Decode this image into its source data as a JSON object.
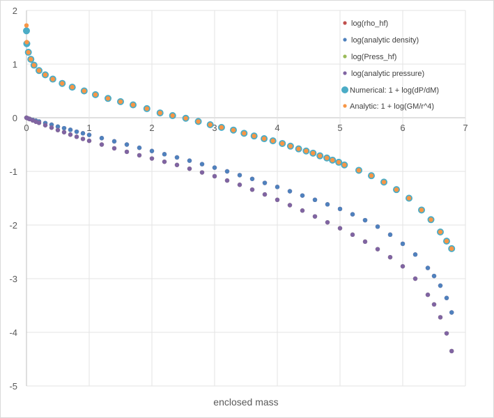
{
  "chart_data": {
    "type": "scatter",
    "title": "",
    "xlabel": "enclosed mass",
    "ylabel": "",
    "xlim": [
      0,
      7
    ],
    "ylim": [
      -5,
      2
    ],
    "xticks": [
      "0",
      "1",
      "2",
      "3",
      "4",
      "5",
      "6",
      "7"
    ],
    "yticks": [
      "2",
      "1",
      "0",
      "-1",
      "-2",
      "-3",
      "-4",
      "-5"
    ],
    "grid": true,
    "legend_position": "top-right",
    "x_profile": [
      0,
      0.02,
      0.05,
      0.1,
      0.15,
      0.2,
      0.3,
      0.4,
      0.5,
      0.6,
      0.7,
      0.8,
      0.9,
      1.0,
      1.2,
      1.4,
      1.6,
      1.8,
      2.0,
      2.2,
      2.4,
      2.6,
      2.8,
      3.0,
      3.2,
      3.4,
      3.6,
      3.8,
      4.0,
      4.2,
      4.4,
      4.6,
      4.8,
      5.0,
      5.2,
      5.4,
      5.6,
      5.8,
      6.0,
      6.2,
      6.4,
      6.5,
      6.6,
      6.7,
      6.78
    ],
    "x_gradient": [
      0,
      0.005,
      0.03,
      0.07,
      0.12,
      0.2,
      0.3,
      0.42,
      0.57,
      0.73,
      0.92,
      1.1,
      1.3,
      1.5,
      1.7,
      1.92,
      2.13,
      2.33,
      2.54,
      2.74,
      2.93,
      3.11,
      3.3,
      3.47,
      3.63,
      3.79,
      3.93,
      4.08,
      4.21,
      4.34,
      4.46,
      4.57,
      4.68,
      4.79,
      4.88,
      4.98,
      5.07,
      5.3,
      5.5,
      5.7,
      5.9,
      6.1,
      6.3,
      6.45,
      6.6,
      6.7,
      6.78
    ],
    "series": [
      {
        "name": "log(rho_hf)",
        "color": "#c0504d",
        "x_key": "x_profile",
        "size": "small",
        "values": [
          0,
          -0.01,
          -0.02,
          -0.04,
          -0.055,
          -0.07,
          -0.1,
          -0.13,
          -0.165,
          -0.195,
          -0.225,
          -0.26,
          -0.29,
          -0.32,
          -0.38,
          -0.44,
          -0.5,
          -0.56,
          -0.62,
          -0.68,
          -0.74,
          -0.8,
          -0.865,
          -0.93,
          -1.0,
          -1.07,
          -1.14,
          -1.215,
          -1.29,
          -1.37,
          -1.45,
          -1.53,
          -1.615,
          -1.7,
          -1.8,
          -1.91,
          -2.03,
          -2.18,
          -2.35,
          -2.55,
          -2.8,
          -2.95,
          -3.13,
          -3.36,
          -3.63
        ]
      },
      {
        "name": "log(analytic density)",
        "color": "#4f81bd",
        "x_key": "x_profile",
        "size": "small",
        "values": [
          0,
          -0.01,
          -0.02,
          -0.04,
          -0.055,
          -0.07,
          -0.1,
          -0.13,
          -0.165,
          -0.195,
          -0.225,
          -0.26,
          -0.29,
          -0.32,
          -0.38,
          -0.44,
          -0.5,
          -0.56,
          -0.62,
          -0.68,
          -0.74,
          -0.8,
          -0.865,
          -0.93,
          -1.0,
          -1.07,
          -1.14,
          -1.215,
          -1.29,
          -1.37,
          -1.45,
          -1.53,
          -1.615,
          -1.7,
          -1.8,
          -1.91,
          -2.03,
          -2.18,
          -2.35,
          -2.55,
          -2.8,
          -2.95,
          -3.13,
          -3.36,
          -3.63
        ]
      },
      {
        "name": "log(Press_hf)",
        "color": "#9bbb59",
        "x_key": "x_profile",
        "size": "small",
        "values": [
          0,
          -0.01,
          -0.025,
          -0.05,
          -0.075,
          -0.095,
          -0.14,
          -0.185,
          -0.23,
          -0.27,
          -0.315,
          -0.355,
          -0.395,
          -0.43,
          -0.5,
          -0.57,
          -0.635,
          -0.7,
          -0.76,
          -0.82,
          -0.88,
          -0.95,
          -1.02,
          -1.09,
          -1.17,
          -1.25,
          -1.34,
          -1.43,
          -1.53,
          -1.63,
          -1.73,
          -1.84,
          -1.95,
          -2.06,
          -2.18,
          -2.31,
          -2.45,
          -2.6,
          -2.77,
          -3.0,
          -3.3,
          -3.48,
          -3.72,
          -4.02,
          -4.35
        ]
      },
      {
        "name": "log(analytic pressure)",
        "color": "#8064a2",
        "x_key": "x_profile",
        "size": "small",
        "values": [
          0,
          -0.01,
          -0.025,
          -0.05,
          -0.075,
          -0.095,
          -0.14,
          -0.185,
          -0.23,
          -0.27,
          -0.315,
          -0.355,
          -0.395,
          -0.43,
          -0.5,
          -0.57,
          -0.635,
          -0.7,
          -0.76,
          -0.82,
          -0.88,
          -0.95,
          -1.02,
          -1.09,
          -1.17,
          -1.25,
          -1.34,
          -1.43,
          -1.53,
          -1.63,
          -1.73,
          -1.84,
          -1.95,
          -2.06,
          -2.18,
          -2.31,
          -2.45,
          -2.6,
          -2.77,
          -3.0,
          -3.3,
          -3.48,
          -3.72,
          -4.02,
          -4.35
        ]
      },
      {
        "name": "Numerical: 1 + log(dP/dM)",
        "color": "#4bacc6",
        "x_key": "x_gradient",
        "size": "large",
        "values": [
          1.62,
          1.38,
          1.22,
          1.09,
          0.98,
          0.88,
          0.8,
          0.72,
          0.64,
          0.57,
          0.5,
          0.43,
          0.36,
          0.3,
          0.24,
          0.17,
          0.09,
          0.04,
          -0.01,
          -0.07,
          -0.13,
          -0.18,
          -0.23,
          -0.29,
          -0.34,
          -0.39,
          -0.43,
          -0.48,
          -0.53,
          -0.58,
          -0.62,
          -0.66,
          -0.71,
          -0.75,
          -0.79,
          -0.83,
          -0.88,
          -0.98,
          -1.08,
          -1.2,
          -1.34,
          -1.5,
          -1.72,
          -1.9,
          -2.13,
          -2.3,
          -2.44
        ]
      },
      {
        "name": "Analytic: 1 + log(GM/r^4)",
        "color": "#f79646",
        "x_key": "x_gradient",
        "size": "small",
        "values": [
          1.72,
          1.41,
          1.22,
          1.09,
          0.98,
          0.88,
          0.8,
          0.72,
          0.64,
          0.57,
          0.5,
          0.43,
          0.36,
          0.3,
          0.24,
          0.17,
          0.09,
          0.04,
          -0.01,
          -0.07,
          -0.13,
          -0.18,
          -0.23,
          -0.29,
          -0.34,
          -0.39,
          -0.43,
          -0.48,
          -0.53,
          -0.58,
          -0.62,
          -0.66,
          -0.71,
          -0.75,
          -0.79,
          -0.83,
          -0.88,
          -0.98,
          -1.08,
          -1.2,
          -1.34,
          -1.5,
          -1.72,
          -1.9,
          -2.13,
          -2.3,
          -2.44
        ]
      }
    ]
  }
}
